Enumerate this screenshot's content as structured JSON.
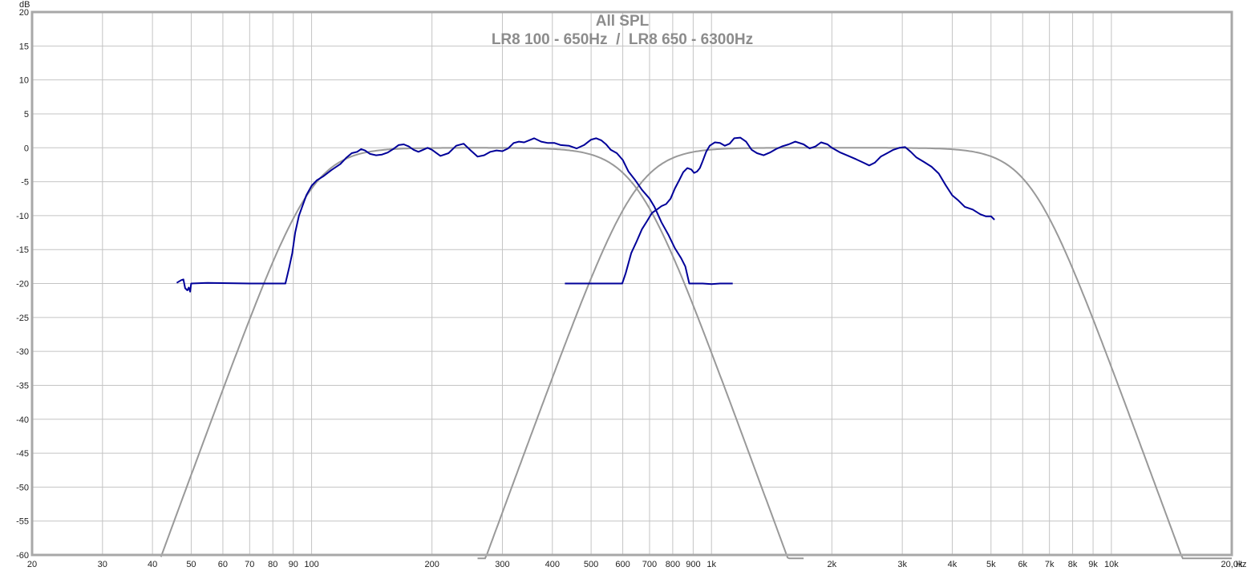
{
  "chart_data": {
    "type": "line",
    "title": "All SPL",
    "subtitle": "LR8 100 - 650Hz  /  LR8 650 - 6300Hz",
    "ylabel": "dB",
    "xlabel": "Hz",
    "x_scale": "log",
    "xlim": [
      20,
      20000
    ],
    "ylim": [
      -60,
      20
    ],
    "grid": true,
    "x_ticks": [
      {
        "v": 20,
        "label": "20"
      },
      {
        "v": 30,
        "label": "30"
      },
      {
        "v": 40,
        "label": "40"
      },
      {
        "v": 50,
        "label": "50"
      },
      {
        "v": 60,
        "label": "60"
      },
      {
        "v": 70,
        "label": "70"
      },
      {
        "v": 80,
        "label": "80"
      },
      {
        "v": 90,
        "label": "90"
      },
      {
        "v": 100,
        "label": "100"
      },
      {
        "v": 200,
        "label": "200"
      },
      {
        "v": 300,
        "label": "300"
      },
      {
        "v": 400,
        "label": "400"
      },
      {
        "v": 500,
        "label": "500"
      },
      {
        "v": 600,
        "label": "600"
      },
      {
        "v": 700,
        "label": "700"
      },
      {
        "v": 800,
        "label": "800"
      },
      {
        "v": 900,
        "label": "900"
      },
      {
        "v": 1000,
        "label": "1k"
      },
      {
        "v": 2000,
        "label": "2k"
      },
      {
        "v": 3000,
        "label": "3k"
      },
      {
        "v": 4000,
        "label": "4k"
      },
      {
        "v": 5000,
        "label": "5k"
      },
      {
        "v": 6000,
        "label": "6k"
      },
      {
        "v": 7000,
        "label": "7k"
      },
      {
        "v": 8000,
        "label": "8k"
      },
      {
        "v": 9000,
        "label": "9k"
      },
      {
        "v": 10000,
        "label": "10k"
      },
      {
        "v": 20000,
        "label": "20,0k"
      }
    ],
    "y_ticks": [
      20,
      15,
      10,
      5,
      0,
      -5,
      -10,
      -15,
      -20,
      -25,
      -30,
      -35,
      -40,
      -45,
      -50,
      -55,
      -60
    ],
    "colors": {
      "measured": "#000099",
      "target": "#999999",
      "grid": "#c4c4c4",
      "frame": "#a8a8a8",
      "title": "#8c8c8c"
    },
    "series": [
      {
        "kind": "measured",
        "color": "#000099",
        "points": [
          [
            46,
            -19.9
          ],
          [
            47.2,
            -19.5
          ],
          [
            47.8,
            -19.4
          ],
          [
            48.3,
            -20.7
          ],
          [
            48.9,
            -21.0
          ],
          [
            49.3,
            -20.6
          ],
          [
            49.7,
            -21.2
          ],
          [
            50,
            -20
          ],
          [
            55,
            -19.9
          ],
          [
            70,
            -20
          ],
          [
            86,
            -20
          ],
          [
            88,
            -17.5
          ],
          [
            89.5,
            -15.5
          ],
          [
            91,
            -12.5
          ],
          [
            93,
            -10
          ],
          [
            95,
            -8.5
          ],
          [
            97,
            -7
          ],
          [
            100,
            -5.6
          ],
          [
            103,
            -4.8
          ],
          [
            107,
            -4.2
          ],
          [
            112,
            -3.3
          ],
          [
            118,
            -2.4
          ],
          [
            122,
            -1.5
          ],
          [
            126,
            -0.8
          ],
          [
            130,
            -0.6
          ],
          [
            133,
            -0.2
          ],
          [
            136,
            -0.4
          ],
          [
            140,
            -0.9
          ],
          [
            145,
            -1.1
          ],
          [
            150,
            -1.0
          ],
          [
            155,
            -0.7
          ],
          [
            160,
            -0.2
          ],
          [
            165,
            0.4
          ],
          [
            170,
            0.5
          ],
          [
            175,
            0.2
          ],
          [
            180,
            -0.3
          ],
          [
            185,
            -0.6
          ],
          [
            190,
            -0.3
          ],
          [
            195,
            0
          ],
          [
            200,
            -0.3
          ],
          [
            210,
            -1.2
          ],
          [
            220,
            -0.8
          ],
          [
            230,
            0.3
          ],
          [
            240,
            0.6
          ],
          [
            250,
            -0.4
          ],
          [
            260,
            -1.3
          ],
          [
            270,
            -1.1
          ],
          [
            280,
            -0.6
          ],
          [
            290,
            -0.4
          ],
          [
            300,
            -0.5
          ],
          [
            310,
            -0.1
          ],
          [
            320,
            0.7
          ],
          [
            330,
            0.9
          ],
          [
            340,
            0.8
          ],
          [
            350,
            1.1
          ],
          [
            360,
            1.4
          ],
          [
            375,
            0.9
          ],
          [
            390,
            0.7
          ],
          [
            405,
            0.7
          ],
          [
            420,
            0.4
          ],
          [
            440,
            0.3
          ],
          [
            460,
            -0.1
          ],
          [
            480,
            0.4
          ],
          [
            500,
            1.2
          ],
          [
            515,
            1.4
          ],
          [
            530,
            1.1
          ],
          [
            545,
            0.5
          ],
          [
            560,
            -0.3
          ],
          [
            580,
            -0.8
          ],
          [
            600,
            -1.8
          ],
          [
            620,
            -3.5
          ],
          [
            645,
            -4.8
          ],
          [
            670,
            -6.2
          ],
          [
            700,
            -7.5
          ],
          [
            720,
            -8.7
          ],
          [
            750,
            -11
          ],
          [
            780,
            -12.8
          ],
          [
            810,
            -14.8
          ],
          [
            840,
            -16.3
          ],
          [
            860,
            -17.5
          ],
          [
            880,
            -20
          ],
          [
            950,
            -20
          ],
          [
            1000,
            -20.1
          ],
          [
            1050,
            -20
          ],
          [
            1130,
            -20
          ]
        ]
      },
      {
        "kind": "measured",
        "color": "#000099",
        "points": [
          [
            430,
            -20
          ],
          [
            550,
            -20
          ],
          [
            598,
            -20
          ],
          [
            610,
            -18.5
          ],
          [
            630,
            -15.5
          ],
          [
            650,
            -13.8
          ],
          [
            670,
            -12
          ],
          [
            690,
            -10.8
          ],
          [
            710,
            -9.6
          ],
          [
            730,
            -9.1
          ],
          [
            750,
            -8.6
          ],
          [
            770,
            -8.3
          ],
          [
            790,
            -7.5
          ],
          [
            810,
            -6
          ],
          [
            830,
            -4.8
          ],
          [
            850,
            -3.6
          ],
          [
            870,
            -3.0
          ],
          [
            890,
            -3.2
          ],
          [
            905,
            -3.7
          ],
          [
            920,
            -3.5
          ],
          [
            935,
            -3.0
          ],
          [
            950,
            -2.0
          ],
          [
            970,
            -0.6
          ],
          [
            990,
            0.3
          ],
          [
            1020,
            0.8
          ],
          [
            1050,
            0.7
          ],
          [
            1080,
            0.3
          ],
          [
            1110,
            0.6
          ],
          [
            1140,
            1.4
          ],
          [
            1180,
            1.5
          ],
          [
            1220,
            0.9
          ],
          [
            1260,
            -0.3
          ],
          [
            1300,
            -0.8
          ],
          [
            1350,
            -1.1
          ],
          [
            1400,
            -0.7
          ],
          [
            1450,
            -0.2
          ],
          [
            1500,
            0.2
          ],
          [
            1560,
            0.5
          ],
          [
            1620,
            0.9
          ],
          [
            1700,
            0.5
          ],
          [
            1760,
            -0.1
          ],
          [
            1820,
            0.2
          ],
          [
            1880,
            0.8
          ],
          [
            1950,
            0.5
          ],
          [
            2000,
            0
          ],
          [
            2100,
            -0.7
          ],
          [
            2200,
            -1.2
          ],
          [
            2300,
            -1.7
          ],
          [
            2400,
            -2.2
          ],
          [
            2480,
            -2.6
          ],
          [
            2560,
            -2.2
          ],
          [
            2650,
            -1.3
          ],
          [
            2750,
            -0.8
          ],
          [
            2850,
            -0.3
          ],
          [
            2950,
            0
          ],
          [
            3050,
            0.1
          ],
          [
            3150,
            -0.6
          ],
          [
            3250,
            -1.4
          ],
          [
            3400,
            -2.1
          ],
          [
            3550,
            -2.8
          ],
          [
            3700,
            -3.8
          ],
          [
            3850,
            -5.5
          ],
          [
            4000,
            -7.0
          ],
          [
            4150,
            -7.8
          ],
          [
            4300,
            -8.7
          ],
          [
            4500,
            -9.1
          ],
          [
            4700,
            -9.8
          ],
          [
            4850,
            -10.1
          ],
          [
            5000,
            -10.1
          ],
          [
            5100,
            -10.6
          ]
        ]
      },
      {
        "kind": "target",
        "color": "#999999",
        "filters": [
          {
            "type": "hp",
            "fc": 100,
            "order": 8
          },
          {
            "type": "lp",
            "fc": 650,
            "order": 8
          }
        ],
        "range": [
          42,
          1700
        ]
      },
      {
        "kind": "target",
        "color": "#999999",
        "filters": [
          {
            "type": "hp",
            "fc": 650,
            "order": 8
          },
          {
            "type": "lp",
            "fc": 6300,
            "order": 8
          }
        ],
        "range": [
          260,
          20000
        ]
      }
    ]
  }
}
